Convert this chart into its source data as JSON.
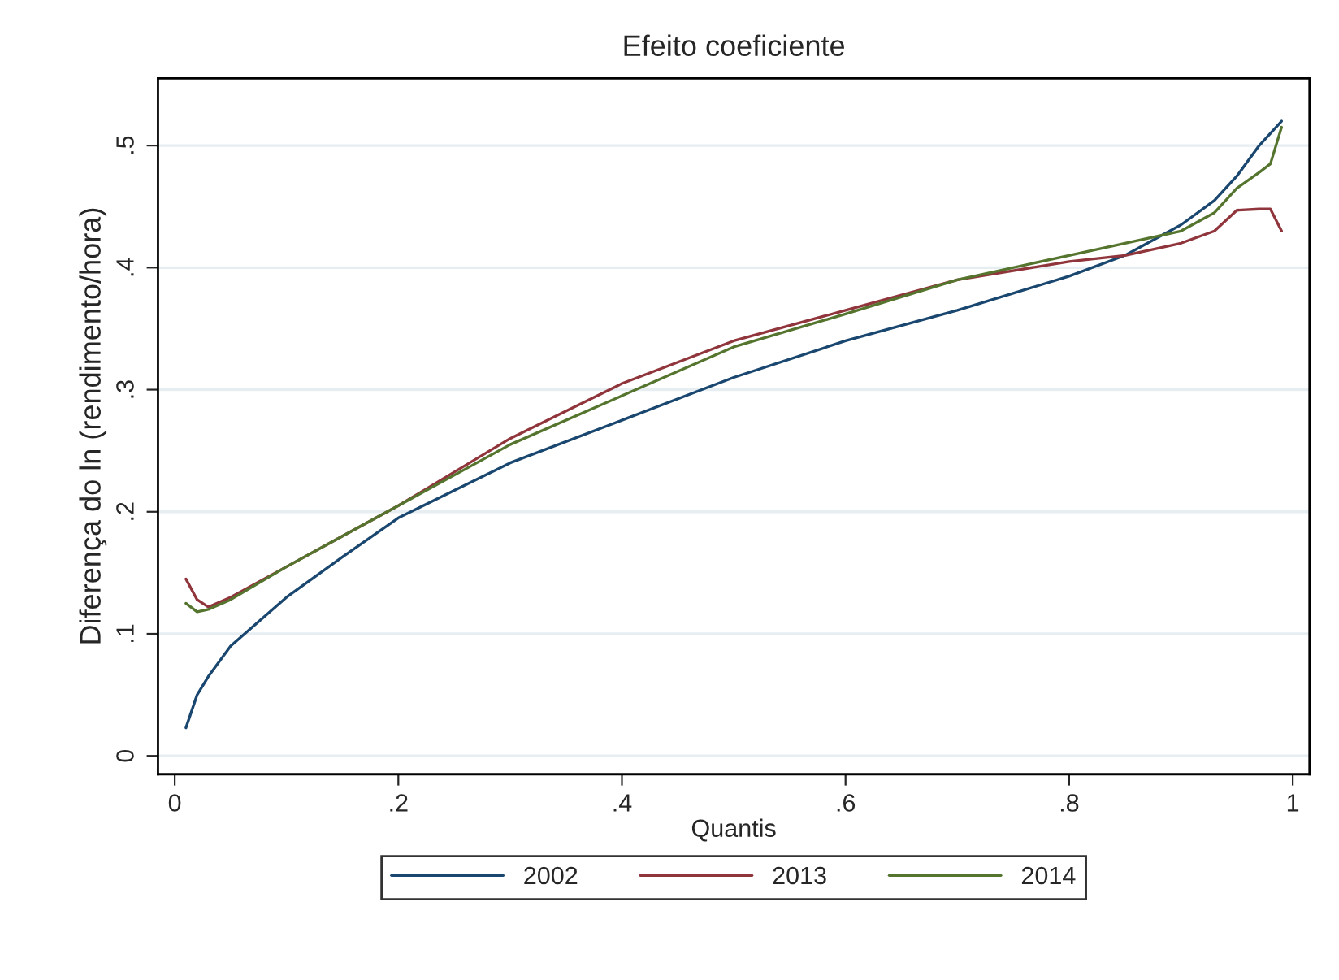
{
  "chart_data": {
    "type": "line",
    "title": "Efeito coeficiente",
    "xlabel": "Quantis",
    "ylabel": "Diferença do ln (rendimento/hora)",
    "xlim": [
      -0.015,
      1.015
    ],
    "ylim": [
      -0.015,
      0.555
    ],
    "xticks": [
      {
        "value": 0,
        "label": "0"
      },
      {
        "value": 0.2,
        "label": ".2"
      },
      {
        "value": 0.4,
        "label": ".4"
      },
      {
        "value": 0.6,
        "label": ".6"
      },
      {
        "value": 0.8,
        "label": ".8"
      },
      {
        "value": 1,
        "label": "1"
      }
    ],
    "yticks": [
      {
        "value": 0,
        "label": "0"
      },
      {
        "value": 0.1,
        "label": ".1"
      },
      {
        "value": 0.2,
        "label": ".2"
      },
      {
        "value": 0.3,
        "label": ".3"
      },
      {
        "value": 0.4,
        "label": ".4"
      },
      {
        "value": 0.5,
        "label": ".5"
      }
    ],
    "x": [
      0.01,
      0.02,
      0.03,
      0.05,
      0.1,
      0.15,
      0.2,
      0.3,
      0.4,
      0.5,
      0.6,
      0.7,
      0.8,
      0.85,
      0.9,
      0.93,
      0.95,
      0.97,
      0.98,
      0.99
    ],
    "grid": "y",
    "legend": "bottom",
    "line_style": "solid",
    "series": [
      {
        "name": "2002",
        "color": "#1a476f",
        "values": [
          0.023,
          0.05,
          0.065,
          0.09,
          0.13,
          0.163,
          0.195,
          0.24,
          0.275,
          0.31,
          0.34,
          0.365,
          0.393,
          0.41,
          0.435,
          0.455,
          0.475,
          0.5,
          0.51,
          0.52
        ]
      },
      {
        "name": "2013",
        "color": "#90353b",
        "values": [
          0.145,
          0.128,
          0.122,
          0.13,
          0.155,
          0.18,
          0.205,
          0.26,
          0.305,
          0.34,
          0.365,
          0.39,
          0.405,
          0.41,
          0.42,
          0.43,
          0.447,
          0.448,
          0.448,
          0.43
        ]
      },
      {
        "name": "2014",
        "color": "#55752f",
        "values": [
          0.125,
          0.118,
          0.12,
          0.128,
          0.155,
          0.18,
          0.205,
          0.255,
          0.295,
          0.335,
          0.362,
          0.39,
          0.41,
          0.42,
          0.43,
          0.445,
          0.465,
          0.478,
          0.485,
          0.515
        ]
      }
    ]
  }
}
